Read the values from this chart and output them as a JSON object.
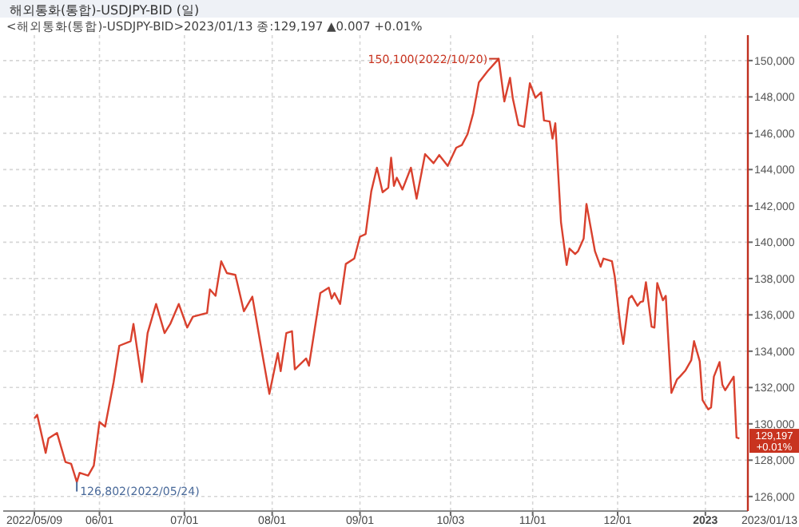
{
  "chart_data": {
    "type": "line",
    "title": "해외통화(통합)-USDJPY-BID (일)",
    "subtitle": "<해외통화(통합)-USDJPY-BID>2023/01/13 종:129,197 ▲0.007 +0.01%",
    "x": [
      "2022-05-09",
      "2022-05-10",
      "2022-05-13",
      "2022-05-14",
      "2022-05-17",
      "2022-05-20",
      "2022-05-22",
      "2022-05-24",
      "2022-05-25",
      "2022-05-28",
      "2022-05-30",
      "2022-06-01",
      "2022-06-03",
      "2022-06-06",
      "2022-06-08",
      "2022-06-12",
      "2022-06-13",
      "2022-06-16",
      "2022-06-18",
      "2022-06-21",
      "2022-06-24",
      "2022-06-26",
      "2022-06-29",
      "2022-07-02",
      "2022-07-04",
      "2022-07-09",
      "2022-07-10",
      "2022-07-12",
      "2022-07-14",
      "2022-07-16",
      "2022-07-19",
      "2022-07-22",
      "2022-07-25",
      "2022-07-28",
      "2022-07-31",
      "2022-08-03",
      "2022-08-04",
      "2022-08-06",
      "2022-08-08",
      "2022-08-09",
      "2022-08-13",
      "2022-08-14",
      "2022-08-18",
      "2022-08-21",
      "2022-08-22",
      "2022-08-23",
      "2022-08-25",
      "2022-08-27",
      "2022-08-30",
      "2022-09-01",
      "2022-09-03",
      "2022-09-05",
      "2022-09-07",
      "2022-09-09",
      "2022-09-11",
      "2022-09-12",
      "2022-09-13",
      "2022-09-14",
      "2022-09-16",
      "2022-09-19",
      "2022-09-21",
      "2022-09-24",
      "2022-09-27",
      "2022-09-29",
      "2022-10-02",
      "2022-10-05",
      "2022-10-07",
      "2022-10-09",
      "2022-10-11",
      "2022-10-13",
      "2022-10-16",
      "2022-10-20",
      "2022-10-22",
      "2022-10-24",
      "2022-10-25",
      "2022-10-27",
      "2022-10-29",
      "2022-10-31",
      "2022-11-02",
      "2022-11-04",
      "2022-11-05",
      "2022-11-07",
      "2022-11-08",
      "2022-11-09",
      "2022-11-11",
      "2022-11-13",
      "2022-11-14",
      "2022-11-16",
      "2022-11-17",
      "2022-11-19",
      "2022-11-20",
      "2022-11-23",
      "2022-11-25",
      "2022-11-26",
      "2022-11-29",
      "2022-11-30",
      "2022-12-02",
      "2022-12-03",
      "2022-12-05",
      "2022-12-06",
      "2022-12-08",
      "2022-12-09",
      "2022-12-10",
      "2022-12-11",
      "2022-12-13",
      "2022-12-14",
      "2022-12-15",
      "2022-12-17",
      "2022-12-18",
      "2022-12-20",
      "2022-12-22",
      "2022-12-23",
      "2022-12-25",
      "2022-12-27",
      "2022-12-28",
      "2022-12-30",
      "2022-12-31",
      "2023-01-02",
      "2023-01-03",
      "2023-01-04",
      "2023-01-06",
      "2023-01-07",
      "2023-01-08",
      "2023-01-11",
      "2023-01-12",
      "2023-01-13"
    ],
    "series": [
      {
        "color": "#d9412e",
        "values": [
          130300,
          130500,
          128400,
          129200,
          129500,
          127900,
          127800,
          126802,
          127300,
          127150,
          127700,
          130100,
          129850,
          132300,
          134300,
          134550,
          135500,
          132300,
          135000,
          136600,
          135000,
          135500,
          136600,
          135300,
          135900,
          136100,
          137400,
          137050,
          138950,
          138300,
          138200,
          136200,
          137000,
          134300,
          131650,
          133900,
          132900,
          135000,
          135100,
          133000,
          133600,
          133200,
          137200,
          137500,
          136900,
          137200,
          136600,
          138800,
          139100,
          140300,
          140450,
          142800,
          144100,
          142750,
          143000,
          144650,
          143100,
          143550,
          142900,
          144100,
          142400,
          144850,
          144350,
          144800,
          144200,
          145200,
          145350,
          145950,
          147100,
          148800,
          149400,
          150100,
          147750,
          149050,
          147900,
          146450,
          146350,
          148750,
          147950,
          148250,
          146700,
          146650,
          145700,
          146550,
          141100,
          138750,
          139650,
          139350,
          139500,
          140200,
          142100,
          139500,
          138650,
          139100,
          138950,
          138100,
          135350,
          134400,
          136900,
          137050,
          136500,
          136700,
          136750,
          137800,
          135350,
          135300,
          137750,
          136800,
          137050,
          131700,
          132450,
          132600,
          132950,
          133500,
          134550,
          133450,
          131300,
          130800,
          130900,
          132600,
          133400,
          132150,
          131850,
          132600,
          129250,
          129197
        ]
      }
    ],
    "xlim": [
      "2022-04-28",
      "2023-01-16"
    ],
    "ylim": [
      125200,
      151400
    ],
    "xticks": [
      {
        "value": "2022-05-09",
        "label": "2022/05/09"
      },
      {
        "value": "2022-06-01",
        "label": "06/01"
      },
      {
        "value": "2022-07-01",
        "label": "07/01"
      },
      {
        "value": "2022-08-01",
        "label": "08/01"
      },
      {
        "value": "2022-09-01",
        "label": "09/01"
      },
      {
        "value": "2022-10-03",
        "label": "10/03"
      },
      {
        "value": "2022-11-01",
        "label": "11/01"
      },
      {
        "value": "2022-12-01",
        "label": "12/01"
      },
      {
        "value": "2023-01-01",
        "label": "2023"
      }
    ],
    "yticks": [
      {
        "value": 126000,
        "label": "126,000"
      },
      {
        "value": 128000,
        "label": "128,000"
      },
      {
        "value": 130000,
        "label": "130,000"
      },
      {
        "value": 132000,
        "label": "132,000"
      },
      {
        "value": 134000,
        "label": "134,000"
      },
      {
        "value": 136000,
        "label": "136,000"
      },
      {
        "value": 138000,
        "label": "138,000"
      },
      {
        "value": 140000,
        "label": "140,000"
      },
      {
        "value": 142000,
        "label": "142,000"
      },
      {
        "value": 144000,
        "label": "144,000"
      },
      {
        "value": 146000,
        "label": "146,000"
      },
      {
        "value": 148000,
        "label": "148,000"
      },
      {
        "value": 150000,
        "label": "150,000"
      }
    ],
    "grid": true,
    "annotations": [
      {
        "text": "150,100(2022/10/20)",
        "x": "2022-10-20",
        "y": 150100
      },
      {
        "text": "126,802(2022/05/24)",
        "x": "2022-05-24",
        "y": 126802
      },
      {
        "text": "129,197 +0.01%",
        "x": "2023-01-13",
        "y": 129197
      },
      "2023/01/13"
    ]
  }
}
